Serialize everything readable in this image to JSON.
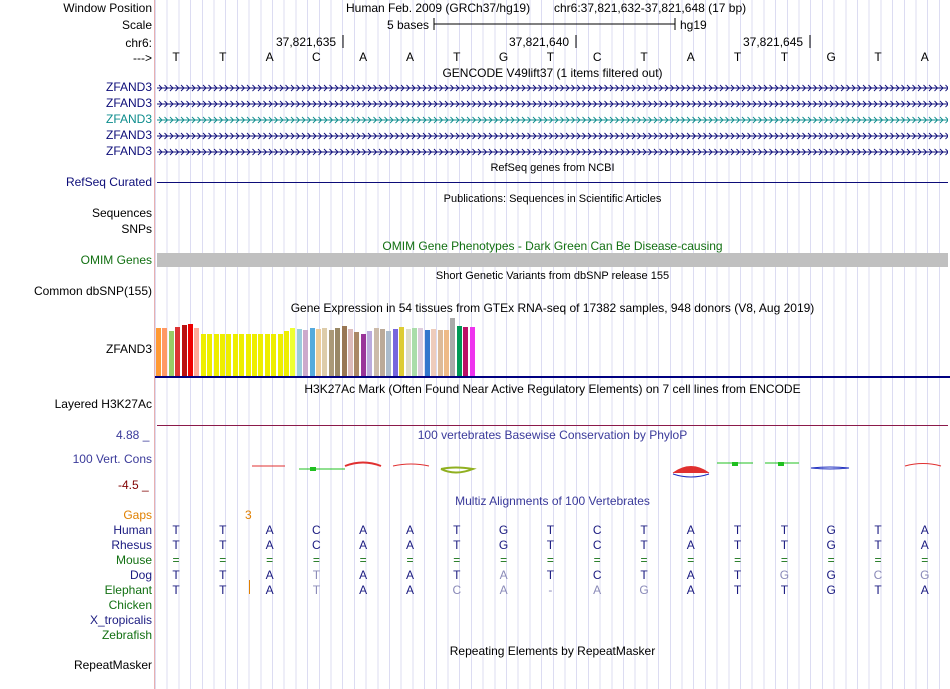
{
  "header": {
    "window_position_label": "Window Position",
    "genome_title": "Human Feb. 2009 (GRCh37/hg19)",
    "position": "chr6:37,821,632-37,821,648 (17 bp)",
    "scale_label": "Scale",
    "scale_bases": "5 bases",
    "scale_assembly": "hg19",
    "chrom_label": "chr6:",
    "ticks": [
      "37,821,635",
      "37,821,640",
      "37,821,645"
    ],
    "strand_label": "--->"
  },
  "sequence": [
    "T",
    "T",
    "A",
    "C",
    "A",
    "A",
    "T",
    "G",
    "T",
    "C",
    "T",
    "A",
    "T",
    "T",
    "G",
    "T",
    "A"
  ],
  "gencode": {
    "title": "GENCODE V49lift37 (1 items filtered out)",
    "genes": [
      {
        "label": "ZFAND3",
        "color": "#0c0c78"
      },
      {
        "label": "ZFAND3",
        "color": "#0c0c78"
      },
      {
        "label": "ZFAND3",
        "color": "#0c8c8c"
      },
      {
        "label": "ZFAND3",
        "color": "#0c0c78"
      },
      {
        "label": "ZFAND3",
        "color": "#0c0c78"
      }
    ]
  },
  "refseq": {
    "title": "RefSeq genes from NCBI",
    "label": "RefSeq Curated"
  },
  "publications": {
    "title": "Publications: Sequences in Scientific Articles",
    "label_seq": "Sequences",
    "label_snps": "SNPs"
  },
  "omim": {
    "title": "OMIM Gene Phenotypes - Dark Green Can Be Disease-causing",
    "label": "OMIM Genes"
  },
  "dbsnp": {
    "title": "Short Genetic Variants from dbSNP release 155",
    "label": "Common dbSNP(155)"
  },
  "gtex": {
    "title": "Gene Expression in 54 tissues from GTEx RNA-seq of 17382 samples, 948 donors (V8, Aug 2019)",
    "label": "ZFAND3",
    "bars": [
      {
        "v": 0.92,
        "c": "#ff9933"
      },
      {
        "v": 0.92,
        "c": "#ff9966"
      },
      {
        "v": 0.86,
        "c": "#99cc66"
      },
      {
        "v": 0.94,
        "c": "#dd3333"
      },
      {
        "v": 0.98,
        "c": "#bb1111"
      },
      {
        "v": 1.0,
        "c": "#ee0000"
      },
      {
        "v": 0.92,
        "c": "#ffaa99"
      },
      {
        "v": 0.8,
        "c": "#eeee00"
      },
      {
        "v": 0.8,
        "c": "#eeee00"
      },
      {
        "v": 0.8,
        "c": "#eeee00"
      },
      {
        "v": 0.8,
        "c": "#eeee00"
      },
      {
        "v": 0.8,
        "c": "#eeee00"
      },
      {
        "v": 0.8,
        "c": "#eeee00"
      },
      {
        "v": 0.8,
        "c": "#eeee00"
      },
      {
        "v": 0.8,
        "c": "#eeee00"
      },
      {
        "v": 0.8,
        "c": "#eeee00"
      },
      {
        "v": 0.8,
        "c": "#eeee00"
      },
      {
        "v": 0.8,
        "c": "#eeee00"
      },
      {
        "v": 0.8,
        "c": "#eeee00"
      },
      {
        "v": 0.8,
        "c": "#eeee00"
      },
      {
        "v": 0.86,
        "c": "#eeee00"
      },
      {
        "v": 0.92,
        "c": "#eeff33"
      },
      {
        "v": 0.9,
        "c": "#99ccdd"
      },
      {
        "v": 0.88,
        "c": "#ccaacc"
      },
      {
        "v": 0.92,
        "c": "#55aadd"
      },
      {
        "v": 0.9,
        "c": "#eecc99"
      },
      {
        "v": 0.92,
        "c": "#ddccaa"
      },
      {
        "v": 0.88,
        "c": "#aa9977"
      },
      {
        "v": 0.92,
        "c": "#998866"
      },
      {
        "v": 0.96,
        "c": "#997755"
      },
      {
        "v": 0.9,
        "c": "#ddbbbb"
      },
      {
        "v": 0.84,
        "c": "#aa8866"
      },
      {
        "v": 0.8,
        "c": "#993399"
      },
      {
        "v": 0.86,
        "c": "#bbaadd"
      },
      {
        "v": 0.92,
        "c": "#ccbbaa"
      },
      {
        "v": 0.9,
        "c": "#bbaa99"
      },
      {
        "v": 0.86,
        "c": "#aabbcc"
      },
      {
        "v": 0.9,
        "c": "#7766dd"
      },
      {
        "v": 0.94,
        "c": "#ddcc33"
      },
      {
        "v": 0.9,
        "c": "#ddddcc"
      },
      {
        "v": 0.92,
        "c": "#aaddaa"
      },
      {
        "v": 0.92,
        "c": "#ddccdd"
      },
      {
        "v": 0.88,
        "c": "#3377cc"
      },
      {
        "v": 0.9,
        "c": "#eeccbb"
      },
      {
        "v": 0.88,
        "c": "#ddbb99"
      },
      {
        "v": 0.88,
        "c": "#eebb88"
      },
      {
        "v": 1.12,
        "c": "#aaaaaa"
      },
      {
        "v": 0.96,
        "c": "#009955"
      },
      {
        "v": 0.94,
        "c": "#bb1166"
      },
      {
        "v": 0.94,
        "c": "#ee33ee"
      }
    ]
  },
  "h3k27ac": {
    "title": "H3K27Ac Mark (Often Found Near Active Regulatory Elements) on 7 cell lines from ENCODE",
    "label": "Layered H3K27Ac"
  },
  "phylop": {
    "title": "100 vertebrates Basewise Conservation by PhyloP",
    "label": "100 Vert. Cons",
    "max": "4.88 _",
    "min": "-4.5 _"
  },
  "multiz": {
    "title": "Multiz Alignments of 100 Vertebrates",
    "gaps_label": "Gaps",
    "gaps_value": "3",
    "species": [
      {
        "name": "Human",
        "color": "#1a1a80",
        "seq": [
          "T",
          "T",
          "A",
          "C",
          "A",
          "A",
          "T",
          "G",
          "T",
          "C",
          "T",
          "A",
          "T",
          "T",
          "G",
          "T",
          "A"
        ]
      },
      {
        "name": "Rhesus",
        "color": "#1a1a80",
        "seq": [
          "T",
          "T",
          "A",
          "C",
          "A",
          "A",
          "T",
          "G",
          "T",
          "C",
          "T",
          "A",
          "T",
          "T",
          "G",
          "T",
          "A"
        ]
      },
      {
        "name": "Mouse",
        "color": "#127012",
        "seq": [
          "=",
          "=",
          "=",
          "=",
          "=",
          "=",
          "=",
          "=",
          "=",
          "=",
          "=",
          "=",
          "=",
          "=",
          "=",
          "=",
          "="
        ]
      },
      {
        "name": "Dog",
        "color": "#1a1a80",
        "seq": [
          "T",
          "T",
          "A",
          "T",
          "A",
          "A",
          "T",
          "A",
          "T",
          "C",
          "T",
          "A",
          "T",
          "G",
          "G",
          "C",
          "G"
        ]
      },
      {
        "name": "Elephant",
        "color": "#127012",
        "seq": [
          "T",
          "T",
          "A",
          "T",
          "A",
          "A",
          "C",
          "A",
          "-",
          "A",
          "G",
          "A",
          "T",
          "T",
          "G",
          "T",
          "A"
        ]
      },
      {
        "name": "Chicken",
        "color": "#127012",
        "seq": []
      },
      {
        "name": "X_tropicalis",
        "color": "#1a1a80",
        "seq": []
      },
      {
        "name": "Zebrafish",
        "color": "#127012",
        "seq": []
      }
    ]
  },
  "repeatmasker": {
    "title": "Repeating Elements by RepeatMasker",
    "label": "RepeatMasker"
  },
  "colors": {
    "navy": "#0c0c78",
    "teal": "#0c8c8c",
    "green": "#127012",
    "orange": "#e08000",
    "maroon": "#800000",
    "phylop_blue": "#3a3a9a"
  }
}
